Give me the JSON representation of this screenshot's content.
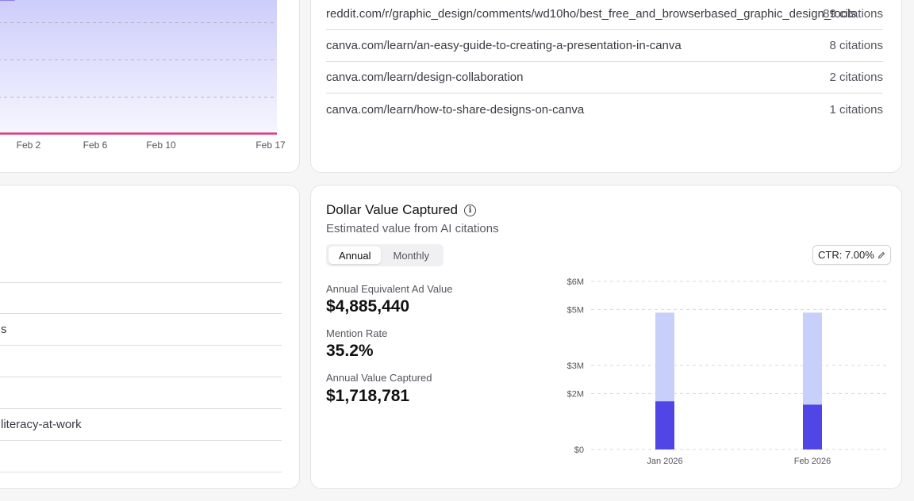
{
  "trend_chart": {
    "x_ticks": [
      "Feb 2",
      "Feb 6",
      "Feb 10",
      "Feb 17"
    ],
    "colors": {
      "area": "#c9c9fb",
      "line": "#e0347f",
      "grid": "#b8b8c8"
    }
  },
  "citations": [
    {
      "url": "reddit.com/r/graphic_design/comments/wd10ho/best_free_and_browserbased_graphic_design_tools",
      "count": "89 citations"
    },
    {
      "url": "canva.com/learn/an-easy-guide-to-creating-a-presentation-in-canva",
      "count": "8 citations"
    },
    {
      "url": "canva.com/learn/design-collaboration",
      "count": "2 citations"
    },
    {
      "url": "canva.com/learn/how-to-share-designs-on-canva",
      "count": "1 citations"
    }
  ],
  "left_list": {
    "rows": [
      "",
      "s",
      "",
      "",
      "literacy-at-work",
      ""
    ]
  },
  "dollar_value": {
    "title": "Dollar Value Captured",
    "subtitle": "Estimated value from AI citations",
    "toggle": {
      "annual": "Annual",
      "monthly": "Monthly",
      "selected": "Annual"
    },
    "ctr_label": "CTR: 7.00%",
    "metrics": [
      {
        "label": "Annual Equivalent Ad Value",
        "value": "$4,885,440"
      },
      {
        "label": "Mention Rate",
        "value": "35.2%"
      },
      {
        "label": "Annual Value Captured",
        "value": "$1,718,781"
      }
    ]
  },
  "chart_data": {
    "type": "bar",
    "categories": [
      "Jan 2026",
      "Feb 2026"
    ],
    "series": [
      {
        "values": [
          1.718781,
          1.6
        ]
      },
      {
        "values": [
          4.88544,
          4.88544
        ]
      }
    ],
    "y_ticks": [
      "$0",
      "$2M",
      "$3M",
      "$5M",
      "$6M"
    ],
    "ylim": [
      0,
      6
    ],
    "stacked_overlay": true,
    "grid": true,
    "colors": {
      "captured": "#4f46e5",
      "total": "#c7d0fb",
      "grid": "#d8d8e0"
    }
  }
}
